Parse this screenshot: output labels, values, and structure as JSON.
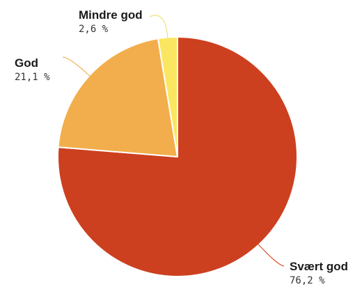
{
  "chart_data": {
    "type": "pie",
    "slices": [
      {
        "label": "Svært god",
        "value": 76.2,
        "value_text": "76,2 %",
        "color": "#cc4020"
      },
      {
        "label": "God",
        "value": 21.1,
        "value_text": "21,1 %",
        "color": "#f2ae4c"
      },
      {
        "label": "Mindre god",
        "value": 2.6,
        "value_text": "2,6 %",
        "color": "#fbe661"
      }
    ],
    "start": "12 o'clock",
    "direction": "clockwise",
    "slice_border_color": "#ffffff",
    "leader_colors": [
      "#d8522e",
      "#f2b35a",
      "#ede27a"
    ]
  }
}
